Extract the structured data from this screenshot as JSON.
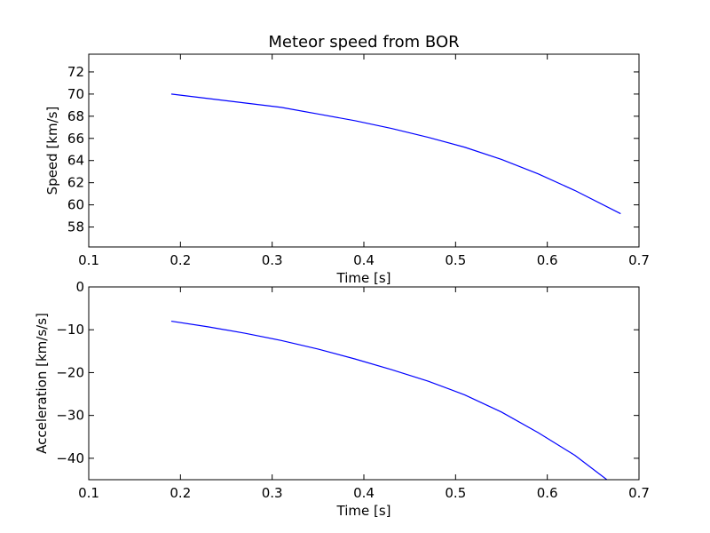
{
  "figure": {
    "title": "Meteor speed from  BOR"
  },
  "chart_data": [
    {
      "type": "line",
      "title": "Meteor speed from  BOR",
      "xlabel": "Time [s]",
      "ylabel": "Speed [km/s]",
      "xlim": [
        0.1,
        0.7
      ],
      "ylim": [
        56.2,
        73.6
      ],
      "xticks": [
        0.1,
        0.2,
        0.3,
        0.4,
        0.5,
        0.6,
        0.7
      ],
      "xtick_labels": [
        "0.1",
        "0.2",
        "0.3",
        "0.4",
        "0.5",
        "0.6",
        "0.7"
      ],
      "yticks": [
        58,
        60,
        62,
        64,
        66,
        68,
        70,
        72
      ],
      "ytick_labels": [
        "58",
        "60",
        "62",
        "64",
        "66",
        "68",
        "70",
        "72"
      ],
      "grid": false,
      "series": [
        {
          "color": "#0000ff",
          "x": [
            0.19,
            0.23,
            0.27,
            0.31,
            0.35,
            0.39,
            0.43,
            0.47,
            0.51,
            0.55,
            0.59,
            0.63,
            0.68
          ],
          "y": [
            70.0,
            69.6,
            69.2,
            68.8,
            68.2,
            67.6,
            66.9,
            66.1,
            65.2,
            64.1,
            62.8,
            61.3,
            59.2
          ]
        }
      ]
    },
    {
      "type": "line",
      "title": "",
      "xlabel": "Time [s]",
      "ylabel": "Acceleration [km/s/s]",
      "xlim": [
        0.1,
        0.7
      ],
      "ylim": [
        -45,
        0
      ],
      "xticks": [
        0.1,
        0.2,
        0.3,
        0.4,
        0.5,
        0.6,
        0.7
      ],
      "xtick_labels": [
        "0.1",
        "0.2",
        "0.3",
        "0.4",
        "0.5",
        "0.6",
        "0.7"
      ],
      "yticks": [
        -40,
        -30,
        -20,
        -10,
        0
      ],
      "ytick_labels": [
        "−40",
        "−30",
        "−20",
        "−10",
        "0"
      ],
      "grid": false,
      "series": [
        {
          "color": "#0000ff",
          "x": [
            0.19,
            0.23,
            0.27,
            0.31,
            0.35,
            0.39,
            0.43,
            0.47,
            0.51,
            0.55,
            0.59,
            0.63,
            0.665
          ],
          "y": [
            -8.0,
            -9.3,
            -10.8,
            -12.5,
            -14.5,
            -16.8,
            -19.3,
            -22.0,
            -25.2,
            -29.2,
            -34.0,
            -39.3,
            -45.0
          ]
        }
      ]
    }
  ]
}
